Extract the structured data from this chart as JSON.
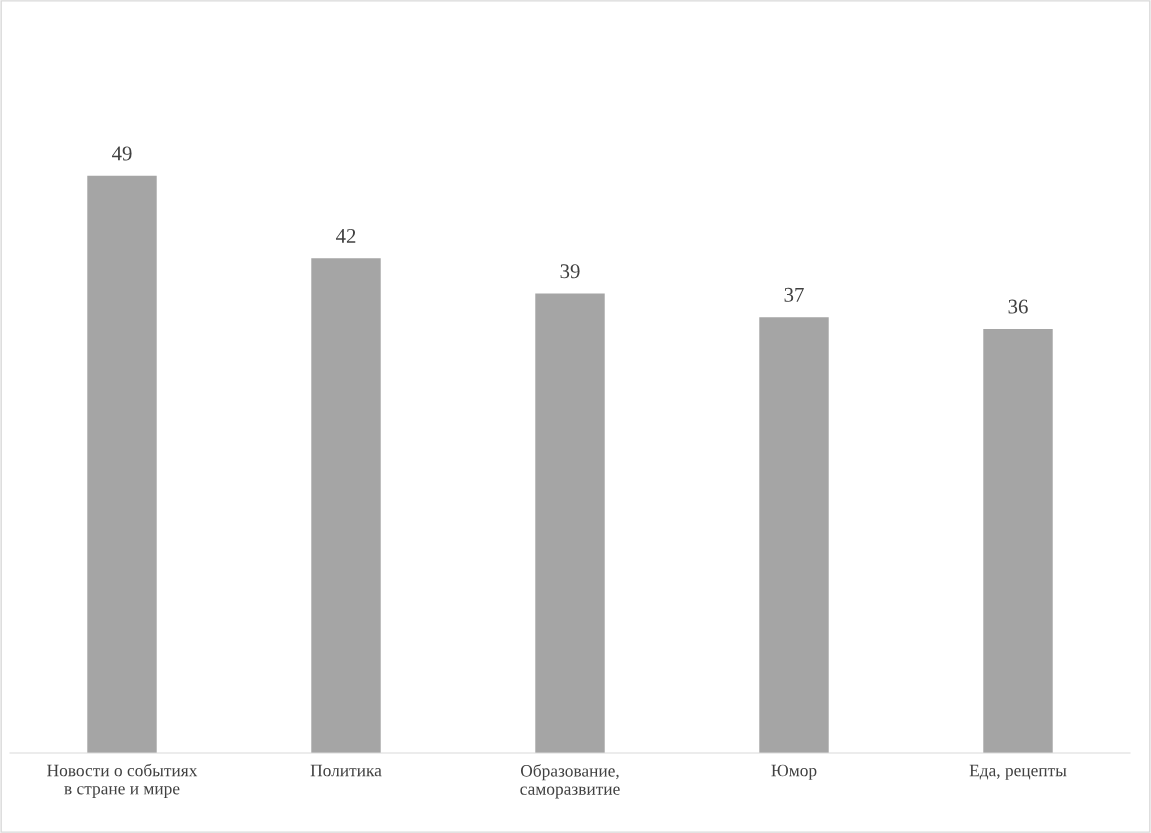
{
  "chart_data": {
    "type": "bar",
    "categories": [
      "Новости о событиях\nв стране и мире",
      "Политика",
      "Образование,\nсаморазвитие",
      "Юмор",
      "Еда, рецепты"
    ],
    "values": [
      49,
      42,
      39,
      37,
      36
    ],
    "color": "#a5a5a5",
    "data_labels": true,
    "grid": false,
    "legend": false
  }
}
